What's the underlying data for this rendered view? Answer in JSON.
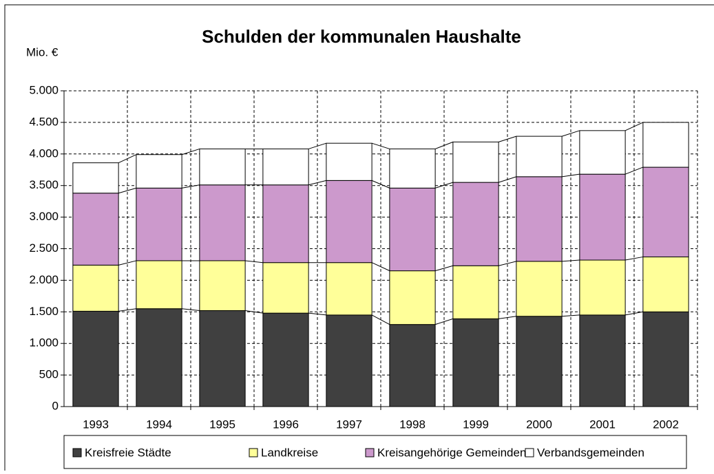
{
  "chart_data": {
    "type": "stacked_bar",
    "title": "Schulden der kommunalen Haushalte",
    "y_label": "Mio. €",
    "categories": [
      "1993",
      "1994",
      "1995",
      "1996",
      "1997",
      "1998",
      "1999",
      "2000",
      "2001",
      "2002"
    ],
    "series": [
      {
        "name": "Kreisfreie Städte",
        "color": "#404040",
        "values": [
          1510,
          1550,
          1520,
          1480,
          1450,
          1300,
          1390,
          1430,
          1450,
          1500
        ]
      },
      {
        "name": "Landkreise",
        "color": "#ffff99",
        "values": [
          730,
          760,
          790,
          800,
          830,
          850,
          840,
          870,
          870,
          870
        ]
      },
      {
        "name": "Kreisangehörige Gemeinden",
        "color": "#cc99cc",
        "values": [
          1140,
          1150,
          1200,
          1230,
          1300,
          1310,
          1320,
          1340,
          1360,
          1420
        ]
      },
      {
        "name": "Verbandsgemeinden",
        "color": "#ffffff",
        "values": [
          480,
          530,
          570,
          570,
          590,
          620,
          640,
          640,
          690,
          710
        ]
      }
    ],
    "ylim": [
      0,
      5000
    ],
    "yticks": [
      0,
      500,
      {
        "value": 1000,
        "label": "1.000"
      },
      {
        "value": 1500,
        "label": "1.500"
      },
      {
        "value": 2000,
        "label": "2.000"
      },
      {
        "value": 2500,
        "label": "2.500"
      },
      {
        "value": 3000,
        "label": "3.000"
      },
      {
        "value": 3500,
        "label": "3.500"
      },
      {
        "value": 4000,
        "label": "4.000"
      },
      {
        "value": 4500,
        "label": "4.500"
      },
      {
        "value": 5000,
        "label": "5.000"
      }
    ],
    "grid": true,
    "legend": "bottom"
  }
}
